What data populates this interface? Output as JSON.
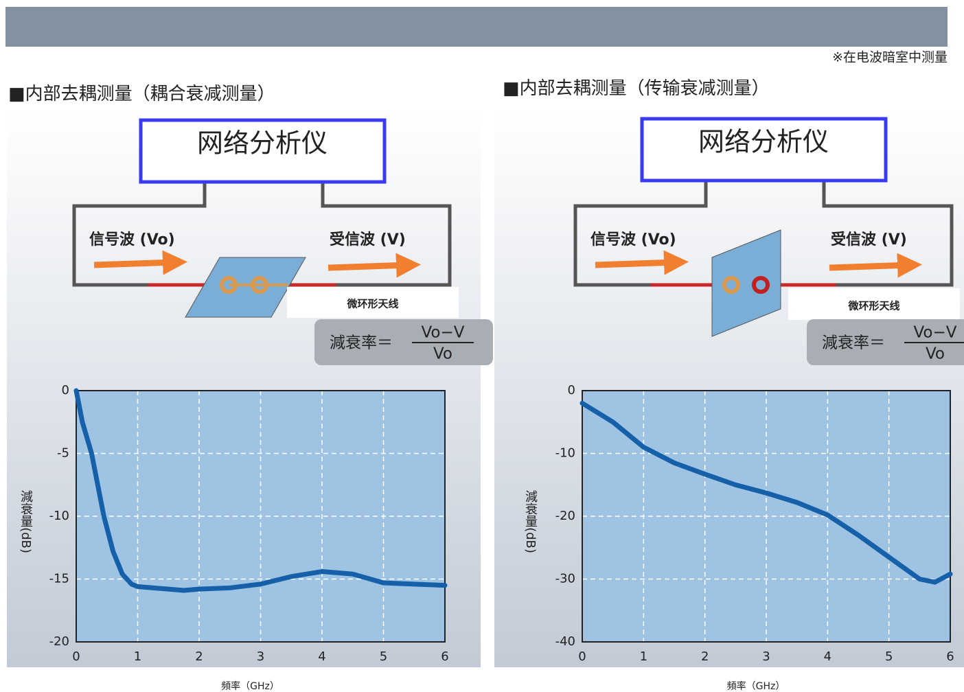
{
  "header_note": "※在电波暗室中测量",
  "panels": [
    {
      "title": "■内部去耦测量（耦合衰减测量）",
      "analyzer": "网络分析仪",
      "signal": "信号波 (Vo)",
      "received": "受信波 (V)",
      "antenna": "微环形天线",
      "formula": {
        "lhs": "減衰率＝",
        "numerator": "Vo−V",
        "denominator": "Vo"
      }
    },
    {
      "title": "■内部去耦测量（传输衰减测量）",
      "analyzer": "网络分析仪",
      "signal": "信号波 (Vo)",
      "received": "受信波 (V)",
      "antenna": "微环形天线",
      "formula": {
        "lhs": "減衰率＝",
        "numerator": "Vo−V",
        "denominator": "Vo"
      }
    }
  ],
  "chart_data": [
    {
      "type": "line",
      "ylabel": "減衰量(dB)",
      "xlabel": "頻率（GHz）",
      "x": [
        0,
        0.1,
        0.25,
        0.45,
        0.6,
        0.75,
        0.9,
        1,
        1.5,
        1.75,
        2,
        2.5,
        3,
        3.5,
        4,
        4.5,
        5,
        5.5,
        6
      ],
      "series": [
        {
          "color": "#1560a8",
          "values": [
            0,
            -2.5,
            -5,
            -10,
            -12.8,
            -14.6,
            -15.4,
            -15.6,
            -15.8,
            -15.9,
            -15.8,
            -15.7,
            -15.4,
            -14.8,
            -14.4,
            -14.6,
            -15.3,
            -15.4,
            -15.5
          ]
        }
      ],
      "xlim": [
        0,
        6
      ],
      "xticks": [
        0,
        1,
        2,
        3,
        4,
        5,
        6
      ],
      "ylim": [
        -20,
        0
      ],
      "yticks": [
        0,
        -5,
        -10,
        -15,
        -20
      ],
      "grid": true
    },
    {
      "type": "line",
      "ylabel": "減衰量(dB)",
      "xlabel": "頻率（GHz）",
      "x": [
        0,
        0.5,
        1,
        1.5,
        2,
        2.5,
        3,
        3.5,
        4,
        4.5,
        5,
        5.5,
        5.75,
        6
      ],
      "series": [
        {
          "color": "#1560a8",
          "values": [
            -2,
            -5,
            -9,
            -11.5,
            -13.3,
            -15,
            -16.3,
            -17.8,
            -19.8,
            -23,
            -26.5,
            -30,
            -30.5,
            -29.2
          ]
        }
      ],
      "xlim": [
        0,
        6
      ],
      "xticks": [
        0,
        1,
        2,
        3,
        4,
        5,
        6
      ],
      "ylim": [
        -40,
        0
      ],
      "yticks": [
        0,
        -10,
        -20,
        -30,
        -40
      ],
      "grid": true
    }
  ]
}
